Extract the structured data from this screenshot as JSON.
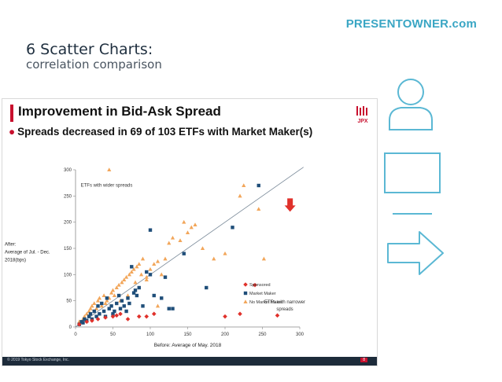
{
  "brand": "PRESENTOWNER.com",
  "heading": {
    "title": "6 Scatter Charts:",
    "subtitle": "correlation comparison"
  },
  "slide": {
    "title": "Improvement in Bid-Ask Spread",
    "bullet": "Spreads decreased in 69 of 103 ETFs with Market Maker(s)",
    "logo_text": "JPX",
    "footer_text": "© 2019 Tokyo Stock Exchange, Inc.",
    "footer_page": "8"
  },
  "colors": {
    "sponsored": "#e0312b",
    "market_maker": "#1f4e79",
    "no_market_maker": "#f2a65a",
    "accent": "#3aa6c4",
    "red_arrow": "#e0312b"
  },
  "icons": [
    "user-icon",
    "window-icon",
    "minus-icon",
    "arrow-right-icon"
  ],
  "chart_data": {
    "type": "scatter",
    "xlabel": "Before: Average of May. 2018",
    "ylabel": "After: Average of Jul. - Dec. 2018(bps)",
    "ylabel_lines": [
      "After:",
      "Average of Jul. - Dec.",
      "2018(bps)"
    ],
    "xlim": [
      0,
      300
    ],
    "ylim": [
      0,
      300
    ],
    "xticks": [
      0,
      50,
      100,
      150,
      200,
      250,
      300
    ],
    "yticks": [
      0,
      50,
      100,
      150,
      200,
      250,
      300
    ],
    "annotations": {
      "upper": "ETFs with wider spreads",
      "lower_lines": [
        "ETFs with narrower",
        "spreads"
      ]
    },
    "reference_line": {
      "x": [
        0,
        305
      ],
      "y": [
        0,
        305
      ]
    },
    "legend_position": "right",
    "series": [
      {
        "name": "Sponsored",
        "marker": "diamond",
        "points": [
          [
            5,
            5
          ],
          [
            15,
            10
          ],
          [
            22,
            12
          ],
          [
            30,
            15
          ],
          [
            40,
            18
          ],
          [
            50,
            20
          ],
          [
            55,
            22
          ],
          [
            60,
            25
          ],
          [
            70,
            15
          ],
          [
            85,
            20
          ],
          [
            95,
            20
          ],
          [
            105,
            25
          ],
          [
            200,
            20
          ],
          [
            220,
            25
          ],
          [
            240,
            80
          ],
          [
            270,
            22
          ]
        ]
      },
      {
        "name": "Market Maker",
        "marker": "square",
        "points": [
          [
            5,
            5
          ],
          [
            8,
            10
          ],
          [
            10,
            8
          ],
          [
            12,
            15
          ],
          [
            15,
            12
          ],
          [
            18,
            20
          ],
          [
            20,
            25
          ],
          [
            22,
            15
          ],
          [
            25,
            30
          ],
          [
            28,
            20
          ],
          [
            30,
            40
          ],
          [
            32,
            25
          ],
          [
            35,
            45
          ],
          [
            38,
            30
          ],
          [
            40,
            20
          ],
          [
            42,
            55
          ],
          [
            45,
            35
          ],
          [
            48,
            40
          ],
          [
            50,
            25
          ],
          [
            52,
            30
          ],
          [
            55,
            45
          ],
          [
            58,
            60
          ],
          [
            60,
            35
          ],
          [
            62,
            50
          ],
          [
            65,
            40
          ],
          [
            68,
            30
          ],
          [
            70,
            55
          ],
          [
            72,
            45
          ],
          [
            75,
            115
          ],
          [
            78,
            65
          ],
          [
            80,
            70
          ],
          [
            82,
            60
          ],
          [
            85,
            75
          ],
          [
            90,
            40
          ],
          [
            95,
            105
          ],
          [
            100,
            185
          ],
          [
            100,
            100
          ],
          [
            105,
            60
          ],
          [
            115,
            55
          ],
          [
            120,
            95
          ],
          [
            125,
            35
          ],
          [
            130,
            35
          ],
          [
            145,
            140
          ],
          [
            175,
            75
          ],
          [
            210,
            190
          ],
          [
            245,
            270
          ]
        ]
      },
      {
        "name": "No Market Maker",
        "marker": "triangle",
        "points": [
          [
            5,
            10
          ],
          [
            10,
            15
          ],
          [
            12,
            20
          ],
          [
            15,
            25
          ],
          [
            18,
            30
          ],
          [
            20,
            35
          ],
          [
            22,
            40
          ],
          [
            25,
            45
          ],
          [
            28,
            35
          ],
          [
            30,
            50
          ],
          [
            32,
            55
          ],
          [
            35,
            40
          ],
          [
            38,
            60
          ],
          [
            40,
            45
          ],
          [
            42,
            50
          ],
          [
            45,
            55
          ],
          [
            48,
            65
          ],
          [
            50,
            70
          ],
          [
            52,
            60
          ],
          [
            55,
            75
          ],
          [
            58,
            80
          ],
          [
            60,
            50
          ],
          [
            62,
            85
          ],
          [
            65,
            90
          ],
          [
            68,
            95
          ],
          [
            70,
            60
          ],
          [
            72,
            100
          ],
          [
            75,
            105
          ],
          [
            78,
            110
          ],
          [
            80,
            85
          ],
          [
            82,
            115
          ],
          [
            85,
            120
          ],
          [
            88,
            100
          ],
          [
            90,
            130
          ],
          [
            95,
            90
          ],
          [
            100,
            110
          ],
          [
            105,
            120
          ],
          [
            110,
            125
          ],
          [
            115,
            100
          ],
          [
            120,
            130
          ],
          [
            125,
            160
          ],
          [
            130,
            170
          ],
          [
            140,
            165
          ],
          [
            145,
            200
          ],
          [
            150,
            180
          ],
          [
            155,
            190
          ],
          [
            160,
            195
          ],
          [
            170,
            150
          ],
          [
            185,
            130
          ],
          [
            200,
            140
          ],
          [
            220,
            250
          ],
          [
            225,
            270
          ],
          [
            245,
            225
          ],
          [
            252,
            130
          ],
          [
            45,
            300
          ],
          [
            95,
            95
          ],
          [
            110,
            40
          ]
        ]
      }
    ]
  }
}
